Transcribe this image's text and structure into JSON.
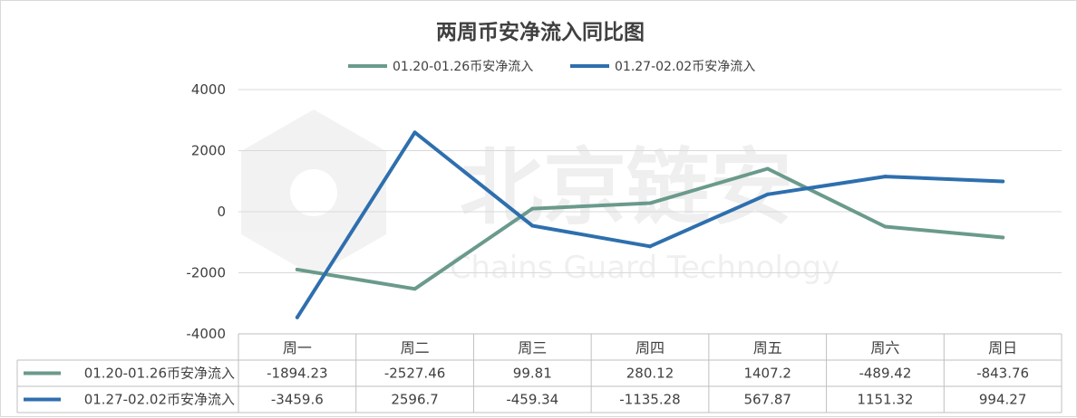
{
  "chart_data": {
    "type": "line",
    "title": "两周币安净流入同比图",
    "categories": [
      "周一",
      "周二",
      "周三",
      "周四",
      "周五",
      "周六",
      "周日"
    ],
    "series": [
      {
        "name": "01.20-01.26币安净流入",
        "color": "#6a9a8c",
        "values": [
          -1894.23,
          -2527.46,
          99.81,
          280.12,
          1407.2,
          -489.42,
          -843.76
        ],
        "labels": [
          "-1894.23",
          "-2527.46",
          "99.81",
          "280.12",
          "1407.2",
          "-489.42",
          "-843.76"
        ]
      },
      {
        "name": "01.27-02.02币安净流入",
        "color": "#2e6fae",
        "values": [
          -3459.6,
          2596.7,
          -459.34,
          -1135.28,
          567.87,
          1151.32,
          994.27
        ],
        "labels": [
          "-3459.6",
          "2596.7",
          "-459.34",
          "-1135.28",
          "567.87",
          "1151.32",
          "994.27"
        ]
      }
    ],
    "yticks": [
      4000,
      2000,
      0,
      -2000,
      -4000
    ],
    "ylim": [
      -4000,
      4000
    ],
    "grid": true,
    "legend": "top-center",
    "data_table": true
  },
  "watermark": {
    "cn": "北京链安",
    "en": "Chains Guard Technology"
  }
}
